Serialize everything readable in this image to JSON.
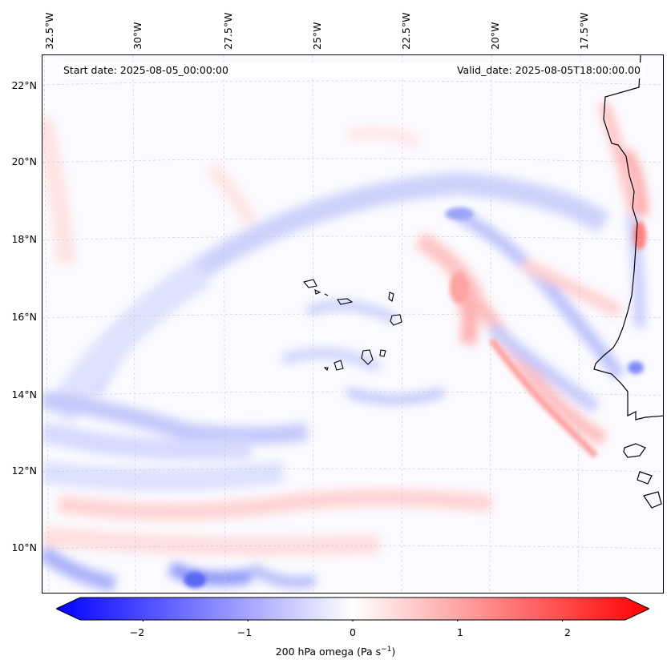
{
  "map": {
    "start_date_text": "Start date: 2025-08-05_00:00:00",
    "valid_date_text": "Valid_date: 2025-08-05T18:00:00.00",
    "longitude_labels": [
      "32.5°W",
      "30°W",
      "27.5°W",
      "25°W",
      "22.5°W",
      "20°W",
      "17.5°W"
    ],
    "latitude_labels": [
      "22°N",
      "20°N",
      "18°N",
      "16°N",
      "14°N",
      "12°N",
      "10°N"
    ],
    "field": "200 hPa omega",
    "colormap": "bwr",
    "colors": {
      "negative": "#0000ff",
      "neutral": "#ffffff",
      "positive": "#ff0000",
      "coastline": "#000000",
      "gridline": "#c8c8c8"
    }
  },
  "colorbar": {
    "ticks": [
      "−2",
      "−1",
      "0",
      "1",
      "2"
    ],
    "tick_values": [
      -2,
      -1,
      0,
      1,
      2
    ],
    "range": [
      -2.6,
      2.6
    ],
    "label_text": "200 hPa omega (Pa s",
    "label_sup": "−1",
    "label_close": ")"
  }
}
